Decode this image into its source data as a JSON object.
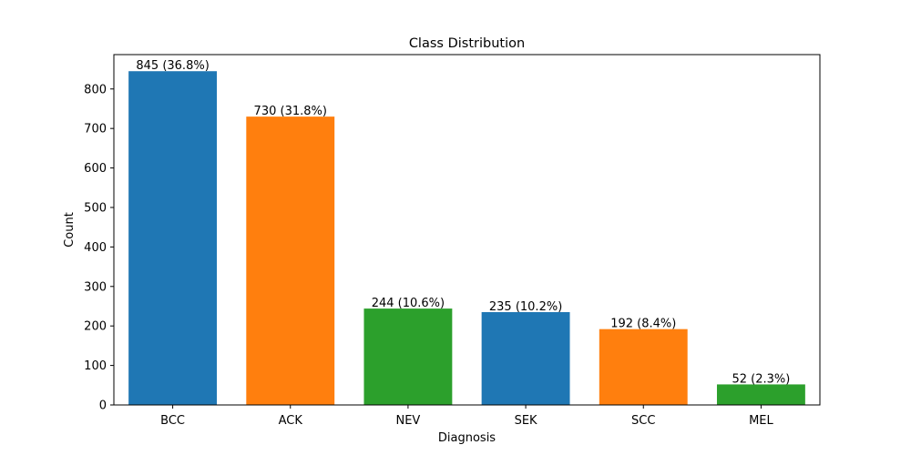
{
  "chart_data": {
    "type": "bar",
    "title": "Class Distribution",
    "xlabel": "Diagnosis",
    "ylabel": "Count",
    "categories": [
      "BCC",
      "ACK",
      "NEV",
      "SEK",
      "SCC",
      "MEL"
    ],
    "values": [
      845,
      730,
      244,
      235,
      192,
      52
    ],
    "data_labels": [
      "845 (36.8%)",
      "730 (31.8%)",
      "244 (10.6%)",
      "235 (10.2%)",
      "192 (8.4%)",
      "52 (2.3%)"
    ],
    "bar_colors": [
      "#1f77b4",
      "#ff7f0e",
      "#2ca02c",
      "#1f77b4",
      "#ff7f0e",
      "#2ca02c"
    ],
    "ylim": [
      0,
      887
    ],
    "yticks": [
      0,
      100,
      200,
      300,
      400,
      500,
      600,
      700,
      800
    ],
    "grid": false,
    "legend": "none"
  }
}
